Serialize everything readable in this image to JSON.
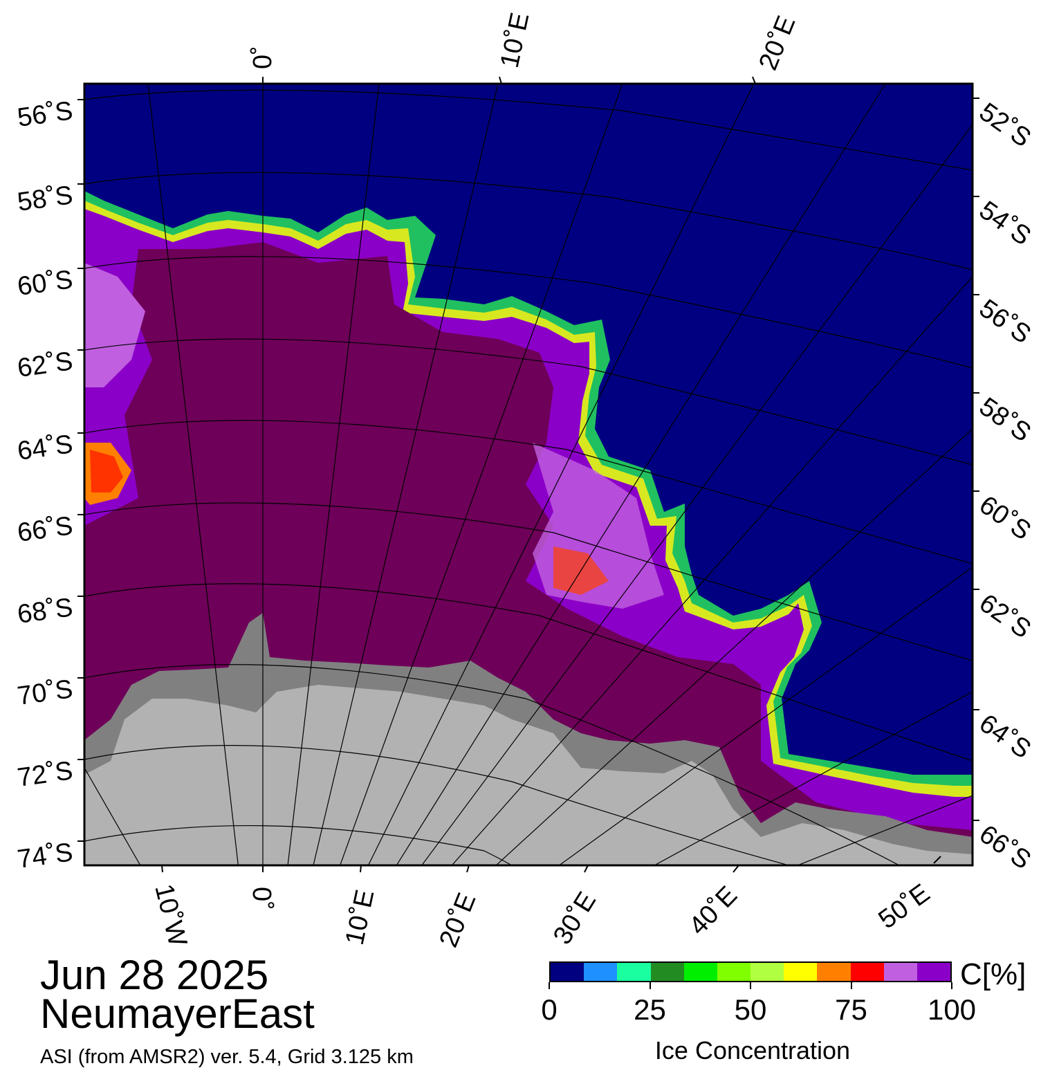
{
  "map": {
    "top_lon_labels": [
      "0˚",
      "10˚E",
      "20˚E"
    ],
    "bottom_lon_labels": [
      "10˚W",
      "0˚",
      "10˚E",
      "20˚E",
      "30˚E",
      "40˚E",
      "50˚E"
    ],
    "left_lat_labels": [
      "56˚S",
      "58˚S",
      "60˚S",
      "62˚S",
      "64˚S",
      "66˚S",
      "68˚S",
      "70˚S",
      "72˚S",
      "74˚S"
    ],
    "right_lat_labels": [
      "52˚S",
      "54˚S",
      "56˚S",
      "58˚S",
      "60˚S",
      "62˚S",
      "64˚S",
      "66˚S"
    ],
    "colors": {
      "open_water": "#000080",
      "land": "#b2b2b2",
      "ice_shelf": "#808080",
      "ice_high": "#6e0059",
      "ice_mid": "#8b00c8",
      "ice_low": "#c060e0",
      "gridline": "#000000"
    }
  },
  "captions": {
    "date": "Jun 28 2025",
    "region": "NeumayerEast",
    "product": "ASI (from AMSR2) ver. 5.4,  Grid 3.125 km"
  },
  "colorbar": {
    "unit": "C[%]",
    "title": "Ice Concentration",
    "tick_labels": [
      "0",
      "25",
      "50",
      "75",
      "100"
    ],
    "tick_values": [
      0,
      25,
      50,
      75,
      100
    ],
    "colors": [
      "#000080",
      "#1e90ff",
      "#1affa0",
      "#228b22",
      "#00ee00",
      "#7fff00",
      "#b0ff40",
      "#ffff00",
      "#ff8000",
      "#ff0000",
      "#c060e0",
      "#8b00c8"
    ]
  }
}
